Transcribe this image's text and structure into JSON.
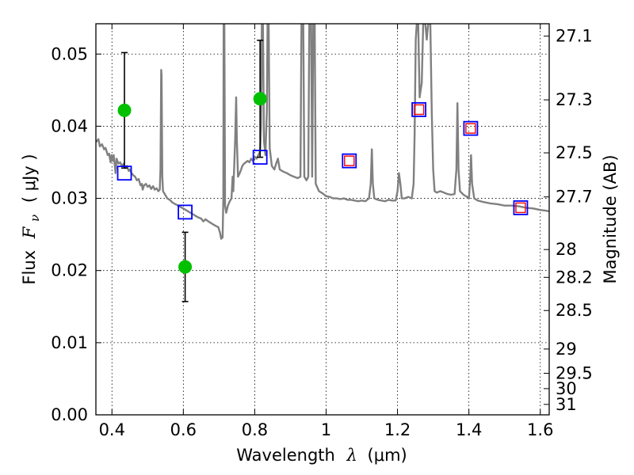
{
  "chart_data": {
    "type": "scatter",
    "xlabel_prefix": "Wavelength",
    "xlabel_symbol": "λ",
    "xlabel_unit": "(μm)",
    "ylabel_prefix": "Flux",
    "ylabel_symbol": "F",
    "ylabel_subscript": "ν",
    "ylabel_unit": "( μJy )",
    "y2label": "Magnitude (AB)",
    "xlim": [
      0.355,
      1.625
    ],
    "ylim": [
      0.0,
      0.0542
    ],
    "grid": true,
    "x_ticks": [
      {
        "value": 0.4,
        "label": "0.4"
      },
      {
        "value": 0.6,
        "label": "0.6"
      },
      {
        "value": 0.8,
        "label": "0.8"
      },
      {
        "value": 1.0,
        "label": "1"
      },
      {
        "value": 1.2,
        "label": "1.2"
      },
      {
        "value": 1.4,
        "label": "1.4"
      },
      {
        "value": 1.6,
        "label": "1.6"
      }
    ],
    "y_ticks": [
      {
        "value": 0.0,
        "label": "0.00"
      },
      {
        "value": 0.01,
        "label": "0.01"
      },
      {
        "value": 0.02,
        "label": "0.02"
      },
      {
        "value": 0.03,
        "label": "0.03"
      },
      {
        "value": 0.04,
        "label": "0.04"
      },
      {
        "value": 0.05,
        "label": "0.05"
      }
    ],
    "y2_ticks": [
      {
        "value": 27.1,
        "label": "27.1"
      },
      {
        "value": 27.3,
        "label": "27.3"
      },
      {
        "value": 27.5,
        "label": "27.5"
      },
      {
        "value": 27.7,
        "label": "27.7"
      },
      {
        "value": 28.0,
        "label": "28"
      },
      {
        "value": 28.2,
        "label": "28.2"
      },
      {
        "value": 28.5,
        "label": "28.5"
      },
      {
        "value": 29.0,
        "label": "29"
      },
      {
        "value": 29.5,
        "label": "29.5"
      },
      {
        "value": 30.0,
        "label": "30"
      },
      {
        "value": 31.0,
        "label": "31"
      }
    ],
    "series": [
      {
        "name": "model-spectrum",
        "kind": "line",
        "color": "#808080",
        "points": [
          [
            0.355,
            0.0378
          ],
          [
            0.362,
            0.0382
          ],
          [
            0.366,
            0.0372
          ],
          [
            0.372,
            0.0375
          ],
          [
            0.378,
            0.0368
          ],
          [
            0.382,
            0.037
          ],
          [
            0.388,
            0.036
          ],
          [
            0.392,
            0.0362
          ],
          [
            0.396,
            0.035
          ],
          [
            0.399,
            0.036
          ],
          [
            0.402,
            0.0352
          ],
          [
            0.405,
            0.036
          ],
          [
            0.408,
            0.0345
          ],
          [
            0.41,
            0.0335
          ],
          [
            0.413,
            0.0355
          ],
          [
            0.418,
            0.0348
          ],
          [
            0.423,
            0.035
          ],
          [
            0.428,
            0.0345
          ],
          [
            0.433,
            0.0348
          ],
          [
            0.437,
            0.0342
          ],
          [
            0.442,
            0.0345
          ],
          [
            0.447,
            0.0338
          ],
          [
            0.45,
            0.034
          ],
          [
            0.455,
            0.0335
          ],
          [
            0.46,
            0.0332
          ],
          [
            0.465,
            0.033
          ],
          [
            0.47,
            0.0325
          ],
          [
            0.475,
            0.0327
          ],
          [
            0.48,
            0.0318
          ],
          [
            0.484,
            0.032
          ],
          [
            0.486,
            0.0312
          ],
          [
            0.49,
            0.0318
          ],
          [
            0.495,
            0.032
          ],
          [
            0.5,
            0.0316
          ],
          [
            0.505,
            0.0318
          ],
          [
            0.51,
            0.0313
          ],
          [
            0.515,
            0.0317
          ],
          [
            0.52,
            0.0312
          ],
          [
            0.525,
            0.0314
          ],
          [
            0.53,
            0.031
          ],
          [
            0.534,
            0.0312
          ],
          [
            0.536,
            0.034
          ],
          [
            0.538,
            0.0478
          ],
          [
            0.539,
            0.047
          ],
          [
            0.541,
            0.033
          ],
          [
            0.543,
            0.031
          ],
          [
            0.548,
            0.0306
          ],
          [
            0.555,
            0.03
          ],
          [
            0.562,
            0.0298
          ],
          [
            0.57,
            0.0294
          ],
          [
            0.578,
            0.0292
          ],
          [
            0.585,
            0.029
          ],
          [
            0.592,
            0.0288
          ],
          [
            0.6,
            0.0286
          ],
          [
            0.61,
            0.0283
          ],
          [
            0.62,
            0.028
          ],
          [
            0.63,
            0.0277
          ],
          [
            0.64,
            0.0274
          ],
          [
            0.65,
            0.0272
          ],
          [
            0.656,
            0.0268
          ],
          [
            0.662,
            0.0271
          ],
          [
            0.67,
            0.0268
          ],
          [
            0.68,
            0.0265
          ],
          [
            0.69,
            0.0262
          ],
          [
            0.698,
            0.026
          ],
          [
            0.703,
            0.0252
          ],
          [
            0.706,
            0.0244
          ],
          [
            0.71,
            0.0246
          ],
          [
            0.712,
            0.03
          ],
          [
            0.713,
            0.0542
          ],
          [
            0.715,
            0.0542
          ],
          [
            0.717,
            0.029
          ],
          [
            0.72,
            0.028
          ],
          [
            0.725,
            0.029
          ],
          [
            0.73,
            0.0296
          ],
          [
            0.735,
            0.03
          ],
          [
            0.738,
            0.033
          ],
          [
            0.74,
            0.031
          ],
          [
            0.745,
            0.038
          ],
          [
            0.748,
            0.044
          ],
          [
            0.75,
            0.038
          ],
          [
            0.753,
            0.033
          ],
          [
            0.758,
            0.0335
          ],
          [
            0.762,
            0.034
          ],
          [
            0.765,
            0.0345
          ],
          [
            0.77,
            0.0348
          ],
          [
            0.775,
            0.035
          ],
          [
            0.78,
            0.0352
          ],
          [
            0.785,
            0.035
          ],
          [
            0.79,
            0.0355
          ],
          [
            0.795,
            0.0352
          ],
          [
            0.8,
            0.0358
          ],
          [
            0.805,
            0.0355
          ],
          [
            0.81,
            0.036
          ],
          [
            0.815,
            0.0365
          ],
          [
            0.818,
            0.04
          ],
          [
            0.82,
            0.0542
          ],
          [
            0.823,
            0.0542
          ],
          [
            0.826,
            0.038
          ],
          [
            0.83,
            0.036
          ],
          [
            0.834,
            0.042
          ],
          [
            0.836,
            0.0542
          ],
          [
            0.839,
            0.0542
          ],
          [
            0.842,
            0.037
          ],
          [
            0.848,
            0.0345
          ],
          [
            0.855,
            0.034
          ],
          [
            0.86,
            0.0348
          ],
          [
            0.865,
            0.0355
          ],
          [
            0.87,
            0.034
          ],
          [
            0.88,
            0.0337
          ],
          [
            0.89,
            0.0335
          ],
          [
            0.9,
            0.0332
          ],
          [
            0.91,
            0.033
          ],
          [
            0.92,
            0.0328
          ],
          [
            0.928,
            0.033
          ],
          [
            0.931,
            0.0542
          ],
          [
            0.936,
            0.0542
          ],
          [
            0.939,
            0.033
          ],
          [
            0.945,
            0.0325
          ],
          [
            0.95,
            0.033
          ],
          [
            0.953,
            0.0542
          ],
          [
            0.958,
            0.0542
          ],
          [
            0.961,
            0.033
          ],
          [
            0.964,
            0.0542
          ],
          [
            0.968,
            0.0542
          ],
          [
            0.971,
            0.032
          ],
          [
            0.98,
            0.031
          ],
          [
            0.99,
            0.0307
          ],
          [
            1.0,
            0.0303
          ],
          [
            1.01,
            0.0302
          ],
          [
            1.02,
            0.03
          ],
          [
            1.03,
            0.03
          ],
          [
            1.04,
            0.0299
          ],
          [
            1.05,
            0.03
          ],
          [
            1.06,
            0.0298
          ],
          [
            1.07,
            0.0298
          ],
          [
            1.08,
            0.0297
          ],
          [
            1.09,
            0.0296
          ],
          [
            1.1,
            0.0297
          ],
          [
            1.11,
            0.0296
          ],
          [
            1.12,
            0.03
          ],
          [
            1.125,
            0.032
          ],
          [
            1.128,
            0.0368
          ],
          [
            1.131,
            0.032
          ],
          [
            1.135,
            0.03
          ],
          [
            1.145,
            0.0298
          ],
          [
            1.155,
            0.0297
          ],
          [
            1.165,
            0.0296
          ],
          [
            1.175,
            0.0298
          ],
          [
            1.185,
            0.0297
          ],
          [
            1.195,
            0.0297
          ],
          [
            1.2,
            0.031
          ],
          [
            1.204,
            0.0335
          ],
          [
            1.208,
            0.032
          ],
          [
            1.212,
            0.03
          ],
          [
            1.22,
            0.03
          ],
          [
            1.23,
            0.0302
          ],
          [
            1.24,
            0.03
          ],
          [
            1.245,
            0.032
          ],
          [
            1.248,
            0.039
          ],
          [
            1.251,
            0.052
          ],
          [
            1.254,
            0.0542
          ],
          [
            1.258,
            0.0542
          ],
          [
            1.262,
            0.044
          ],
          [
            1.268,
            0.046
          ],
          [
            1.272,
            0.0542
          ],
          [
            1.278,
            0.0542
          ],
          [
            1.282,
            0.052
          ],
          [
            1.286,
            0.0542
          ],
          [
            1.292,
            0.0542
          ],
          [
            1.296,
            0.042
          ],
          [
            1.3,
            0.034
          ],
          [
            1.304,
            0.031
          ],
          [
            1.31,
            0.0308
          ],
          [
            1.32,
            0.031
          ],
          [
            1.33,
            0.0308
          ],
          [
            1.34,
            0.0306
          ],
          [
            1.35,
            0.0305
          ],
          [
            1.36,
            0.0306
          ],
          [
            1.365,
            0.034
          ],
          [
            1.368,
            0.0432
          ],
          [
            1.371,
            0.034
          ],
          [
            1.375,
            0.031
          ],
          [
            1.385,
            0.0305
          ],
          [
            1.395,
            0.0302
          ],
          [
            1.4,
            0.03
          ],
          [
            1.404,
            0.033
          ],
          [
            1.406,
            0.036
          ],
          [
            1.409,
            0.032
          ],
          [
            1.415,
            0.03
          ],
          [
            1.425,
            0.0297
          ],
          [
            1.44,
            0.0295
          ],
          [
            1.46,
            0.0293
          ],
          [
            1.48,
            0.0292
          ],
          [
            1.5,
            0.029
          ],
          [
            1.52,
            0.029
          ],
          [
            1.54,
            0.0289
          ],
          [
            1.56,
            0.0287
          ],
          [
            1.58,
            0.0286
          ],
          [
            1.6,
            0.0284
          ],
          [
            1.615,
            0.0283
          ],
          [
            1.625,
            0.0282
          ]
        ]
      },
      {
        "name": "measured-flux",
        "kind": "points-with-errorbars",
        "marker_color": "#00c000",
        "errorbar_color": "#000000",
        "points": [
          {
            "x": 0.435,
            "y": 0.0422,
            "err_low": 0.008,
            "err_high": 0.008
          },
          {
            "x": 0.605,
            "y": 0.0205,
            "err_low": 0.0048,
            "err_high": 0.0048
          },
          {
            "x": 0.815,
            "y": 0.0438,
            "err_low": 0.0081,
            "err_high": 0.0081
          }
        ]
      },
      {
        "name": "model-photometry",
        "kind": "open-squares",
        "marker_color": "#0000ff",
        "points": [
          {
            "x": 0.435,
            "y": 0.0335
          },
          {
            "x": 0.605,
            "y": 0.0281
          },
          {
            "x": 0.815,
            "y": 0.0357
          }
        ]
      },
      {
        "name": "model-photometry-nir",
        "kind": "nested-squares",
        "outer_color": "#0000ff",
        "inner_color": "#ff0000",
        "points": [
          {
            "x": 1.065,
            "y": 0.0352
          },
          {
            "x": 1.26,
            "y": 0.0423
          },
          {
            "x": 1.405,
            "y": 0.0397
          },
          {
            "x": 1.545,
            "y": 0.0287
          }
        ]
      }
    ]
  }
}
